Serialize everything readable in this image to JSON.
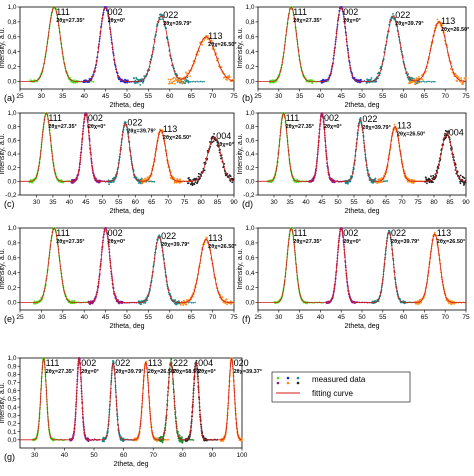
{
  "chart_data": [
    {
      "panel": "(a)",
      "type": "scatter",
      "xlabel": "2theta, deg",
      "ylabel": "Intensity, a.u.",
      "xlim": [
        25,
        75
      ],
      "ylim": [
        -0.1,
        1.0
      ],
      "xticks": [
        25,
        30,
        35,
        40,
        45,
        50,
        55,
        60,
        65,
        70,
        75
      ],
      "yticks": [
        0.0,
        0.2,
        0.4,
        0.6,
        0.8,
        1.0
      ],
      "peaks": [
        {
          "hkl": "111",
          "angle": "2θχ=27.35°",
          "center": 33.0,
          "width": 1.4,
          "height": 1.0,
          "color": "#55dd22",
          "noise": 0.03
        },
        {
          "hkl": "002",
          "angle": "2θχ=0°",
          "center": 45.0,
          "width": 1.3,
          "height": 1.0,
          "color": "#2222cc",
          "noise": 0.03
        },
        {
          "hkl": "022",
          "angle": "2θχ=39.79°",
          "center": 58.0,
          "width": 1.6,
          "height": 0.88,
          "color": "#1a8a8a",
          "noise": 0.07
        },
        {
          "hkl": "113",
          "angle": "2θχ=26.50°",
          "center": 68.5,
          "width": 2.2,
          "height": 0.6,
          "color": "#ff8c1a",
          "noise": 0.08
        }
      ]
    },
    {
      "panel": "(b)",
      "type": "scatter",
      "xlabel": "2theta, deg",
      "ylabel": "Intensity, a.u.",
      "xlim": [
        25,
        75
      ],
      "ylim": [
        -0.1,
        1.0
      ],
      "xticks": [
        25,
        30,
        35,
        40,
        45,
        50,
        55,
        60,
        65,
        70,
        75
      ],
      "yticks": [
        0.0,
        0.2,
        0.4,
        0.6,
        0.8,
        1.0
      ],
      "peaks": [
        {
          "hkl": "111",
          "angle": "2θχ=27.35°",
          "center": 33.0,
          "width": 1.3,
          "height": 1.0,
          "color": "#55dd22",
          "noise": 0.03
        },
        {
          "hkl": "002",
          "angle": "2θχ=0°",
          "center": 45.0,
          "width": 1.2,
          "height": 1.0,
          "color": "#2222cc",
          "noise": 0.03
        },
        {
          "hkl": "022",
          "angle": "2θχ=39.79°",
          "center": 57.5,
          "width": 1.6,
          "height": 0.88,
          "color": "#1a8a8a",
          "noise": 0.06
        },
        {
          "hkl": "113",
          "angle": "2θχ=26.50°",
          "center": 68.5,
          "width": 1.8,
          "height": 0.8,
          "color": "#ff8c1a",
          "noise": 0.07
        }
      ]
    },
    {
      "panel": "(c)",
      "type": "scatter",
      "xlabel": "2theta, deg",
      "ylabel": "Intensity, a.u.",
      "xlim": [
        25,
        90
      ],
      "ylim": [
        -0.2,
        1.0
      ],
      "xticks": [
        30,
        35,
        40,
        45,
        50,
        55,
        60,
        65,
        70,
        75,
        80,
        85,
        90
      ],
      "yticks": [
        -0.2,
        0.0,
        0.2,
        0.4,
        0.6,
        0.8,
        1.0
      ],
      "peaks": [
        {
          "hkl": "111",
          "angle": "2θχ=27.35°",
          "center": 33.0,
          "width": 1.3,
          "height": 1.0,
          "color": "#55dd22",
          "noise": 0.03
        },
        {
          "hkl": "002",
          "angle": "2θχ=0°",
          "center": 45.0,
          "width": 1.1,
          "height": 1.0,
          "color": "#8a1a8a",
          "noise": 0.03
        },
        {
          "hkl": "022",
          "angle": "2θχ=39.79°",
          "center": 57.0,
          "width": 1.3,
          "height": 0.85,
          "color": "#1a8a8a",
          "noise": 0.05
        },
        {
          "hkl": "113",
          "angle": "2θχ=26.50°",
          "center": 67.8,
          "width": 1.5,
          "height": 0.75,
          "color": "#ff8c1a",
          "noise": 0.06
        },
        {
          "hkl": "004",
          "angle": "2θχ=0°",
          "center": 84.0,
          "width": 2.0,
          "height": 0.65,
          "color": "#222222",
          "noise": 0.09
        }
      ]
    },
    {
      "panel": "(d)",
      "type": "scatter",
      "xlabel": "2theta, deg",
      "ylabel": "Intensity, a.u.",
      "xlim": [
        25,
        90
      ],
      "ylim": [
        -0.2,
        1.0
      ],
      "xticks": [
        30,
        35,
        40,
        45,
        50,
        55,
        60,
        65,
        70,
        75,
        80,
        85,
        90
      ],
      "yticks": [
        -0.2,
        0.0,
        0.2,
        0.4,
        0.6,
        0.8,
        1.0
      ],
      "peaks": [
        {
          "hkl": "111",
          "angle": "2θχ=27.35°",
          "center": 33.0,
          "width": 1.2,
          "height": 1.0,
          "color": "#55dd22",
          "noise": 0.03
        },
        {
          "hkl": "002",
          "angle": "2θχ=0°",
          "center": 45.0,
          "width": 1.0,
          "height": 1.0,
          "color": "#8a1a8a",
          "noise": 0.03
        },
        {
          "hkl": "022",
          "angle": "2θχ=39.79°",
          "center": 57.0,
          "width": 1.2,
          "height": 0.9,
          "color": "#1a8a8a",
          "noise": 0.05
        },
        {
          "hkl": "113",
          "angle": "2θχ=26.50°",
          "center": 67.8,
          "width": 1.5,
          "height": 0.8,
          "color": "#ff8c1a",
          "noise": 0.06
        },
        {
          "hkl": "004",
          "angle": "",
          "center": 84.0,
          "width": 1.7,
          "height": 0.7,
          "color": "#222222",
          "noise": 0.08
        }
      ]
    },
    {
      "panel": "(e)",
      "type": "scatter",
      "xlabel": "2theta, deg",
      "ylabel": "Intensity, a.u.",
      "xlim": [
        25,
        75
      ],
      "ylim": [
        -0.1,
        1.0
      ],
      "xticks": [
        25,
        30,
        35,
        40,
        45,
        50,
        55,
        60,
        65,
        70,
        75
      ],
      "yticks": [
        0.0,
        0.2,
        0.4,
        0.6,
        0.8,
        1.0
      ],
      "peaks": [
        {
          "hkl": "111",
          "angle": "2θχ=27.35°",
          "center": 33.0,
          "width": 1.2,
          "height": 1.0,
          "color": "#55dd22",
          "noise": 0.03
        },
        {
          "hkl": "002",
          "angle": "2θχ=0°",
          "center": 45.0,
          "width": 1.0,
          "height": 1.0,
          "color": "#8a1a8a",
          "noise": 0.03
        },
        {
          "hkl": "022",
          "angle": "2θχ=39.79°",
          "center": 57.5,
          "width": 1.2,
          "height": 0.88,
          "color": "#1a8a8a",
          "noise": 0.04
        },
        {
          "hkl": "113",
          "angle": "2θχ=26.50°",
          "center": 68.5,
          "width": 1.5,
          "height": 0.85,
          "color": "#ff8c1a",
          "noise": 0.05
        }
      ]
    },
    {
      "panel": "(f)",
      "type": "scatter",
      "xlabel": "2theta, deg",
      "ylabel": "Intensity, a.u.",
      "xlim": [
        25,
        75
      ],
      "ylim": [
        -0.1,
        1.0
      ],
      "xticks": [
        25,
        30,
        35,
        40,
        45,
        50,
        55,
        60,
        65,
        70,
        75
      ],
      "yticks": [
        0.0,
        0.2,
        0.4,
        0.6,
        0.8,
        1.0
      ],
      "peaks": [
        {
          "hkl": "111",
          "angle": "2θχ=27.35°",
          "center": 33.0,
          "width": 1.0,
          "height": 1.0,
          "color": "#55dd22",
          "noise": 0.02
        },
        {
          "hkl": "002",
          "angle": "2θχ=0°",
          "center": 45.0,
          "width": 0.9,
          "height": 1.0,
          "color": "#8a1a8a",
          "noise": 0.02
        },
        {
          "hkl": "022",
          "angle": "2θχ=39.79°",
          "center": 56.5,
          "width": 1.0,
          "height": 0.95,
          "color": "#1a8a8a",
          "noise": 0.03
        },
        {
          "hkl": "113",
          "angle": "2θχ=26.50°",
          "center": 67.5,
          "width": 1.2,
          "height": 0.92,
          "color": "#ff8c1a",
          "noise": 0.04
        }
      ]
    },
    {
      "panel": "(g)",
      "type": "scatter",
      "xlabel": "2theta, deg",
      "ylabel": "Intensity, a.u.",
      "xlim": [
        25,
        100
      ],
      "ylim": [
        -0.1,
        1.0
      ],
      "xticks": [
        30,
        40,
        50,
        60,
        70,
        80,
        90,
        100
      ],
      "yticks": [
        0.0,
        0.1,
        0.2,
        0.3,
        0.4,
        0.5,
        0.6,
        0.7,
        0.8,
        0.9,
        1.0
      ],
      "peaks": [
        {
          "hkl": "111",
          "angle": "2θχ=27.35°",
          "center": 33.0,
          "width": 0.9,
          "height": 1.0,
          "color": "#55dd22",
          "noise": 0.02
        },
        {
          "hkl": "002",
          "angle": "2θχ=0°",
          "center": 45.0,
          "width": 0.8,
          "height": 1.0,
          "color": "#8a1a8a",
          "noise": 0.02
        },
        {
          "hkl": "022",
          "angle": "2θχ=39.79°",
          "center": 56.5,
          "width": 0.9,
          "height": 0.95,
          "color": "#1a8a8a",
          "noise": 0.03
        },
        {
          "hkl": "113",
          "angle": "2θχ=26.50°",
          "center": 67.5,
          "width": 1.0,
          "height": 0.95,
          "color": "#ff8c1a",
          "noise": 0.03
        },
        {
          "hkl": "222",
          "angle": "2θχ=58.59°",
          "center": 76.0,
          "width": 1.0,
          "height": 0.95,
          "color": "#1a8a2a",
          "noise": 0.06
        },
        {
          "hkl": "004",
          "angle": "2θχ=0°",
          "center": 84.5,
          "width": 0.9,
          "height": 0.95,
          "color": "#222222",
          "noise": 0.03
        },
        {
          "hkl": "020",
          "angle": "2θχ=39.37°",
          "center": 96.5,
          "width": 0.9,
          "height": 1.0,
          "color": "#ff8c1a",
          "noise": 0.03
        }
      ]
    }
  ],
  "legend": {
    "measured": "measured data",
    "fitting": "fitting curve",
    "marker_colors": [
      "#55dd22",
      "#2222cc",
      "#1a8a8a",
      "#8a1a8a",
      "#ff8c1a",
      "#222222"
    ],
    "fit_color": "#d11a1a"
  }
}
